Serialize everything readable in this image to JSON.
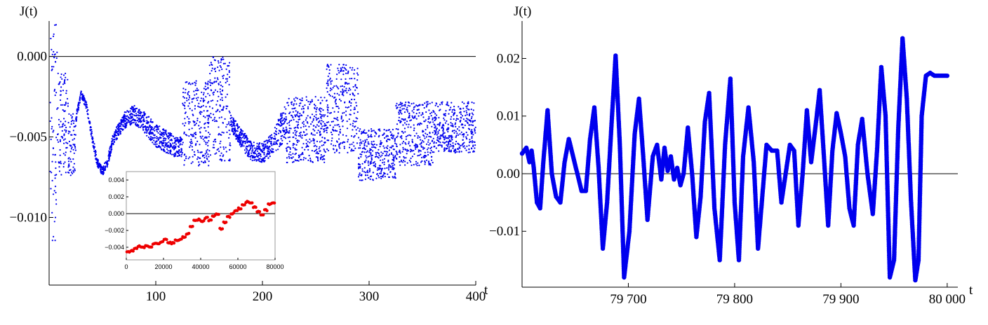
{
  "colors": {
    "series": "#0000ee",
    "inset_series": "#ee0000",
    "axis": "#000000",
    "frame": "#9a9a9a"
  },
  "chart_data": [
    {
      "type": "scatter",
      "xlabel": "t",
      "ylabel": "J(t)",
      "xlim": [
        0,
        400
      ],
      "ylim": [
        -0.0142,
        0.0022
      ],
      "xticks": [
        "100",
        "200",
        "300",
        "400"
      ],
      "yticks": [
        "0.000",
        "−0.005",
        "−0.010"
      ],
      "xtick_values": [
        100,
        200,
        300,
        400
      ],
      "ytick_values": [
        0,
        -0.005,
        -0.01
      ],
      "reference_line": 0,
      "series": [
        {
          "color": "#0000ee",
          "bands": [
            {
              "x0": 1,
              "x1": 8,
              "ylo": -0.0115,
              "yhi": 0.002
            },
            {
              "x0": 8,
              "x1": 18,
              "ylo": -0.0074,
              "yhi": -0.001
            },
            {
              "x0": 18,
              "x1": 25,
              "ylo": -0.0074,
              "yhi": -0.0035
            },
            {
              "x0": 25,
              "x1": 60,
              "ylo": -0.0074,
              "yhi": -0.0021,
              "env": [
                [
                  25,
                  -0.0042,
                  -0.0036
                ],
                [
                  30,
                  -0.0025,
                  -0.0021
                ],
                [
                  35,
                  -0.0033,
                  -0.0028
                ],
                [
                  40,
                  -0.0052,
                  -0.0046
                ],
                [
                  45,
                  -0.0068,
                  -0.0063
                ],
                [
                  50,
                  -0.0074,
                  -0.0069
                ],
                [
                  55,
                  -0.0068,
                  -0.0062
                ],
                [
                  60,
                  -0.0055,
                  -0.0048
                ]
              ]
            },
            {
              "x0": 60,
              "x1": 125,
              "ylo": -0.0066,
              "yhi": -0.003,
              "env": [
                [
                  60,
                  -0.0055,
                  -0.0048
                ],
                [
                  70,
                  -0.0045,
                  -0.0035
                ],
                [
                  80,
                  -0.0042,
                  -0.003
                ],
                [
                  90,
                  -0.0048,
                  -0.0035
                ],
                [
                  100,
                  -0.0056,
                  -0.0042
                ],
                [
                  110,
                  -0.006,
                  -0.0046
                ],
                [
                  120,
                  -0.0063,
                  -0.005
                ],
                [
                  125,
                  -0.0062,
                  -0.0049
                ]
              ]
            },
            {
              "x0": 125,
              "x1": 150,
              "ylo": -0.0068,
              "yhi": -0.0015
            },
            {
              "x0": 150,
              "x1": 170,
              "ylo": -0.0065,
              "yhi": 0
            },
            {
              "x0": 170,
              "x1": 222,
              "ylo": -0.0066,
              "yhi": -0.0028,
              "env": [
                [
                  170,
                  -0.0045,
                  -0.0035
                ],
                [
                  180,
                  -0.0057,
                  -0.0045
                ],
                [
                  190,
                  -0.0065,
                  -0.0053
                ],
                [
                  200,
                  -0.0066,
                  -0.0054
                ],
                [
                  210,
                  -0.0062,
                  -0.0047
                ],
                [
                  222,
                  -0.0052,
                  -0.0028
                ]
              ]
            },
            {
              "x0": 222,
              "x1": 260,
              "ylo": -0.0066,
              "yhi": -0.0025
            },
            {
              "x0": 260,
              "x1": 290,
              "ylo": -0.006,
              "yhi": -0.0005
            },
            {
              "x0": 290,
              "x1": 325,
              "ylo": -0.0077,
              "yhi": -0.0045
            },
            {
              "x0": 325,
              "x1": 360,
              "ylo": -0.0068,
              "yhi": -0.0028
            },
            {
              "x0": 360,
              "x1": 400,
              "ylo": -0.006,
              "yhi": -0.0028
            }
          ]
        }
      ],
      "inset": {
        "type": "scatter",
        "xlim": [
          0,
          80000
        ],
        "ylim": [
          -0.0055,
          0.005
        ],
        "xticks": [
          "0",
          "20000",
          "40000",
          "60000",
          "80000"
        ],
        "xtick_values": [
          0,
          20000,
          40000,
          60000,
          80000
        ],
        "yticks": [
          "0.004",
          "0.002",
          "0.000",
          "−0.002",
          "−0.004"
        ],
        "ytick_values": [
          0.004,
          0.002,
          0,
          -0.002,
          -0.004
        ],
        "series": [
          {
            "color": "#ee0000",
            "x": [
              1000,
              3000,
              5000,
              7000,
              9000,
              11000,
              13000,
              15000,
              17000,
              19000,
              21000,
              23000,
              25000,
              27000,
              29000,
              31000,
              33000,
              35000,
              37000,
              39000,
              41000,
              43000,
              45000,
              47000,
              49000,
              51000,
              53000,
              55000,
              57000,
              59000,
              61000,
              63000,
              65000,
              67000,
              69000,
              71000,
              73000,
              75000,
              77000,
              79000
            ],
            "y": [
              -0.0046,
              -0.0044,
              -0.0041,
              -0.0039,
              -0.004,
              -0.0038,
              -0.0039,
              -0.0036,
              -0.0036,
              -0.0034,
              -0.0031,
              -0.0034,
              -0.0035,
              -0.0032,
              -0.0031,
              -0.0028,
              -0.0024,
              -0.0015,
              -0.0008,
              -0.0007,
              -0.0009,
              -0.0005,
              -0.0008,
              -0.0003,
              -0.0001,
              -0.0018,
              -0.001,
              -0.0004,
              0.0,
              0.0003,
              0.0006,
              0.001,
              0.0014,
              0.0013,
              0.0008,
              0.0002,
              -0.0001,
              0.0004,
              0.0011,
              0.0013
            ]
          }
        ]
      }
    },
    {
      "type": "scatter",
      "xlabel": "t",
      "ylabel": "J(t)",
      "xlim": [
        79600,
        80010
      ],
      "ylim": [
        -0.0197,
        0.0265
      ],
      "xticks": [
        "79 700",
        "79 800",
        "79 900",
        "80 000"
      ],
      "xtick_values": [
        79700,
        79800,
        79900,
        80000
      ],
      "yticks": [
        "0.02",
        "0.01",
        "0.00",
        "−0.01"
      ],
      "ytick_values": [
        0.02,
        0.01,
        0,
        -0.01
      ],
      "reference_line": 0,
      "series": [
        {
          "color": "#0000ee",
          "x": [
            79600,
            79604,
            79607,
            79609,
            79611,
            79614,
            79617,
            79620,
            79624,
            79628,
            79632,
            79636,
            79640,
            79644,
            79648,
            79652,
            79656,
            79660,
            79664,
            79668,
            79672,
            79676,
            79680,
            79684,
            79688,
            79692,
            79696,
            79701,
            79706,
            79710,
            79714,
            79718,
            79723,
            79727,
            79731,
            79734,
            79737,
            79740,
            79743,
            79746,
            79749,
            79752,
            79756,
            79760,
            79764,
            79768,
            79772,
            79776,
            79781,
            79786,
            79791,
            79796,
            79800,
            79804,
            79808,
            79813,
            79818,
            79822,
            79826,
            79830,
            79835,
            79840,
            79844,
            79848,
            79852,
            79856,
            79860,
            79864,
            79868,
            79872,
            79876,
            79880,
            79884,
            79888,
            79892,
            79896,
            79900,
            79904,
            79908,
            79912,
            79916,
            79920,
            79925,
            79930,
            79934,
            79938,
            79942,
            79946,
            79950,
            79954,
            79958,
            79962,
            79966,
            79970,
            79973,
            79976,
            79980,
            79984,
            79988,
            79992,
            79996,
            80000
          ],
          "y": [
            0.0035,
            0.0045,
            0.002,
            0.004,
            0.001,
            -0.005,
            -0.006,
            0.002,
            0.011,
            0.0,
            -0.004,
            -0.005,
            0.002,
            0.006,
            0.003,
            0.0,
            -0.003,
            -0.003,
            0.006,
            0.0115,
            0.001,
            -0.013,
            -0.005,
            0.008,
            0.0205,
            0.005,
            -0.018,
            -0.01,
            0.007,
            0.013,
            0.003,
            -0.008,
            0.003,
            0.005,
            -0.001,
            0.0045,
            0.0005,
            0.003,
            -0.001,
            0.001,
            -0.002,
            0.0,
            0.008,
            0.0,
            -0.011,
            -0.004,
            0.009,
            0.014,
            -0.006,
            -0.015,
            0.005,
            0.0165,
            -0.005,
            -0.015,
            0.003,
            0.0115,
            0.002,
            -0.013,
            -0.004,
            0.005,
            0.004,
            0.004,
            -0.005,
            0.0,
            0.005,
            0.004,
            -0.009,
            0.0,
            0.011,
            0.002,
            0.008,
            0.0145,
            0.003,
            -0.009,
            0.004,
            0.0105,
            0.007,
            0.003,
            -0.006,
            -0.009,
            0.005,
            0.0095,
            0.0,
            -0.007,
            0.004,
            0.0185,
            0.01,
            -0.018,
            -0.015,
            0.008,
            0.0235,
            0.013,
            -0.005,
            -0.0185,
            -0.015,
            0.01,
            0.017,
            0.0175,
            0.017,
            0.017,
            0.017,
            0.017
          ]
        }
      ]
    }
  ]
}
